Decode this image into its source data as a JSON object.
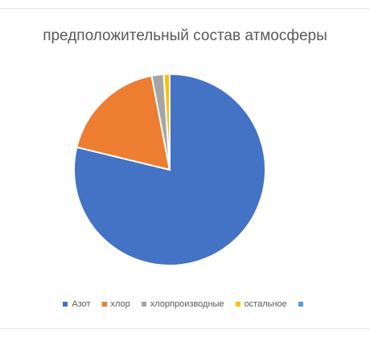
{
  "chart_data": {
    "type": "pie",
    "title": "предположительный состав атмосферы",
    "categories": [
      "Азот",
      "хлор",
      "хлорпроизводные",
      "остальное",
      ""
    ],
    "values": [
      78,
      18,
      2,
      1,
      0
    ],
    "colors": [
      "#4472c4",
      "#ed7d31",
      "#a5a5a5",
      "#ffc000",
      "#5b9bd5"
    ],
    "legend_position": "bottom",
    "start_angle_deg": 0,
    "direction": "clockwise"
  }
}
